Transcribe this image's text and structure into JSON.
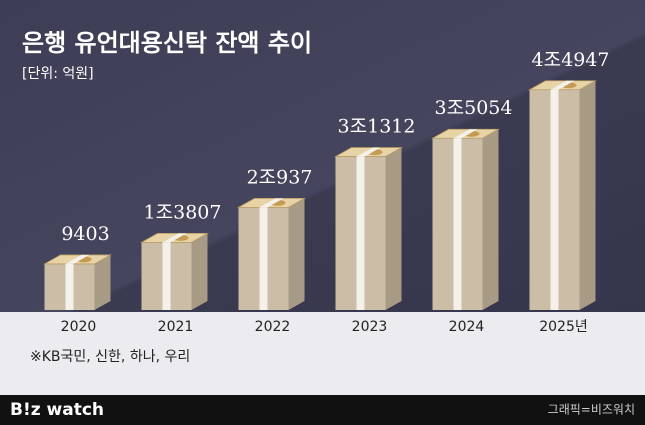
{
  "chart_data": {
    "type": "bar",
    "title": "은행 유언대용신탁 잔액 추이",
    "subtitle": "[단위: 억원]",
    "categories": [
      "2020",
      "2021",
      "2022",
      "2023",
      "2024",
      "2025년"
    ],
    "values": [
      9403,
      13807,
      20937,
      31312,
      35054,
      44947
    ],
    "value_labels": [
      "9403",
      "1조3807",
      "2조937",
      "3조1312",
      "3조5054",
      "4조4947"
    ],
    "note": "※KB국민, 신한, 하나, 우리"
  },
  "footer": {
    "logo": "B!z watch",
    "credit": "그래픽=비즈워치"
  }
}
